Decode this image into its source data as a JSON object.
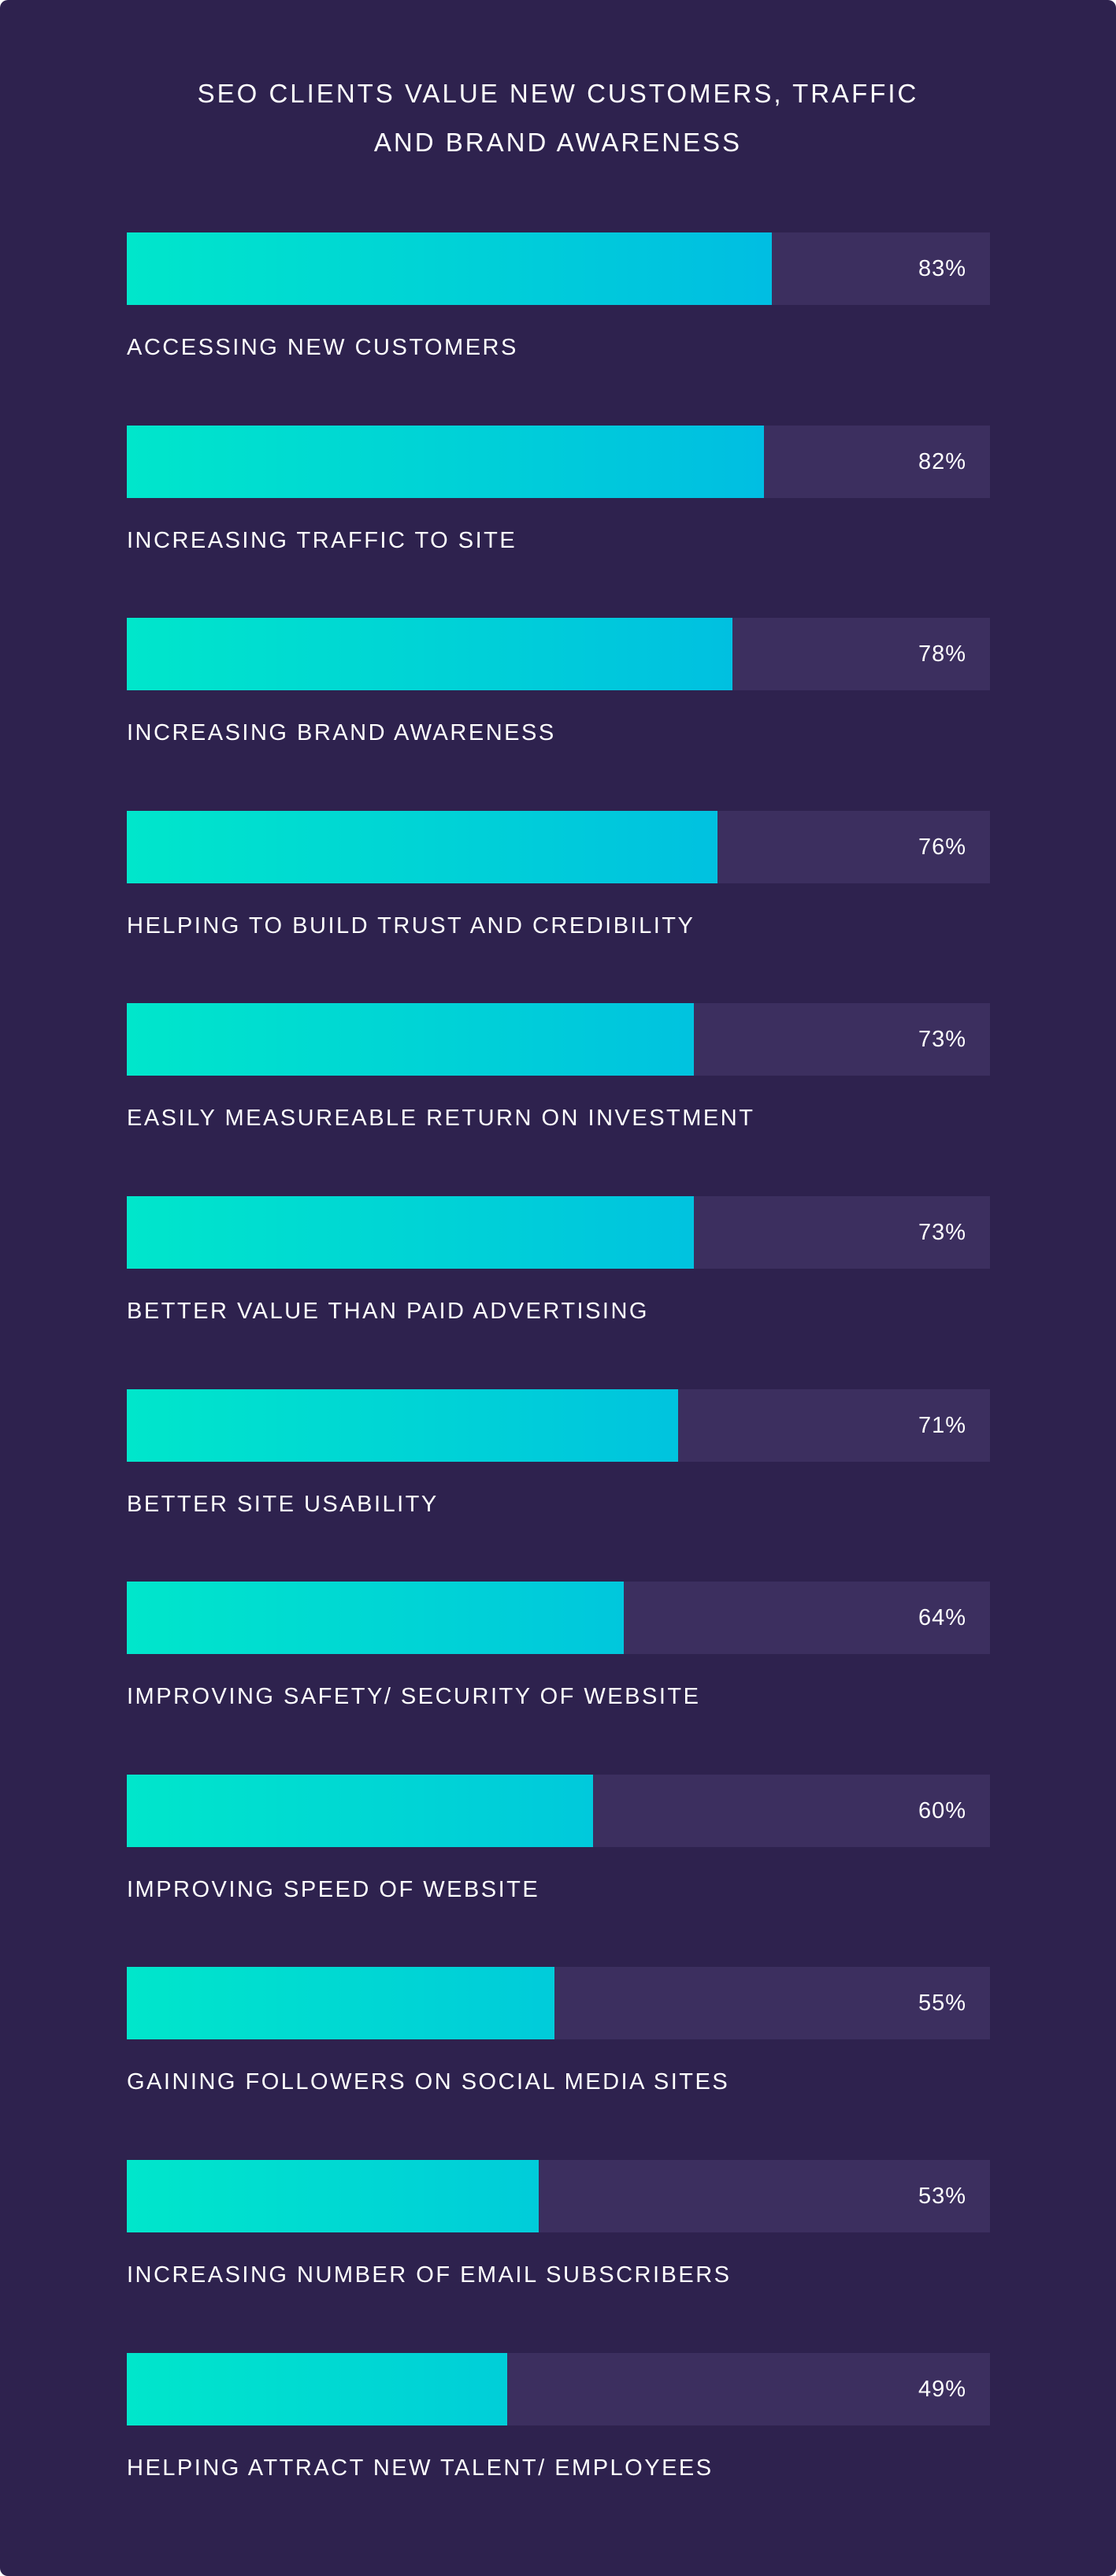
{
  "chart_data": {
    "type": "bar",
    "orientation": "horizontal",
    "title_lines": [
      "SEO CLIENTS VALUE NEW CUSTOMERS, TRAFFIC",
      "AND BRAND AWARENESS"
    ],
    "xlim": [
      0,
      100
    ],
    "unit": "%",
    "categories": [
      "ACCESSING NEW CUSTOMERS",
      "INCREASING TRAFFIC TO SITE",
      "INCREASING BRAND AWARENESS",
      "HELPING TO BUILD TRUST AND CREDIBILITY",
      "EASILY MEASUREABLE RETURN ON INVESTMENT",
      "BETTER VALUE THAN PAID ADVERTISING",
      "BETTER SITE USABILITY",
      "IMPROVING SAFETY/ SECURITY OF WEBSITE",
      "IMPROVING SPEED OF WEBSITE",
      "GAINING FOLLOWERS ON SOCIAL MEDIA SITES",
      "INCREASING NUMBER OF EMAIL SUBSCRIBERS",
      "HELPING ATTRACT NEW TALENT/ EMPLOYEES"
    ],
    "values": [
      83,
      82,
      78,
      76,
      73,
      73,
      71,
      64,
      60,
      55,
      53,
      49
    ],
    "value_labels": [
      "83%",
      "82%",
      "78%",
      "76%",
      "73%",
      "73%",
      "71%",
      "64%",
      "60%",
      "55%",
      "53%",
      "49%"
    ],
    "grid": false,
    "legend": "none",
    "colors": {
      "background": "#2e224e",
      "track": "#3c2f5f",
      "bar_gradient_start": "#00e6cb",
      "bar_gradient_end": "#00b0ea",
      "text": "#ffffff"
    }
  }
}
